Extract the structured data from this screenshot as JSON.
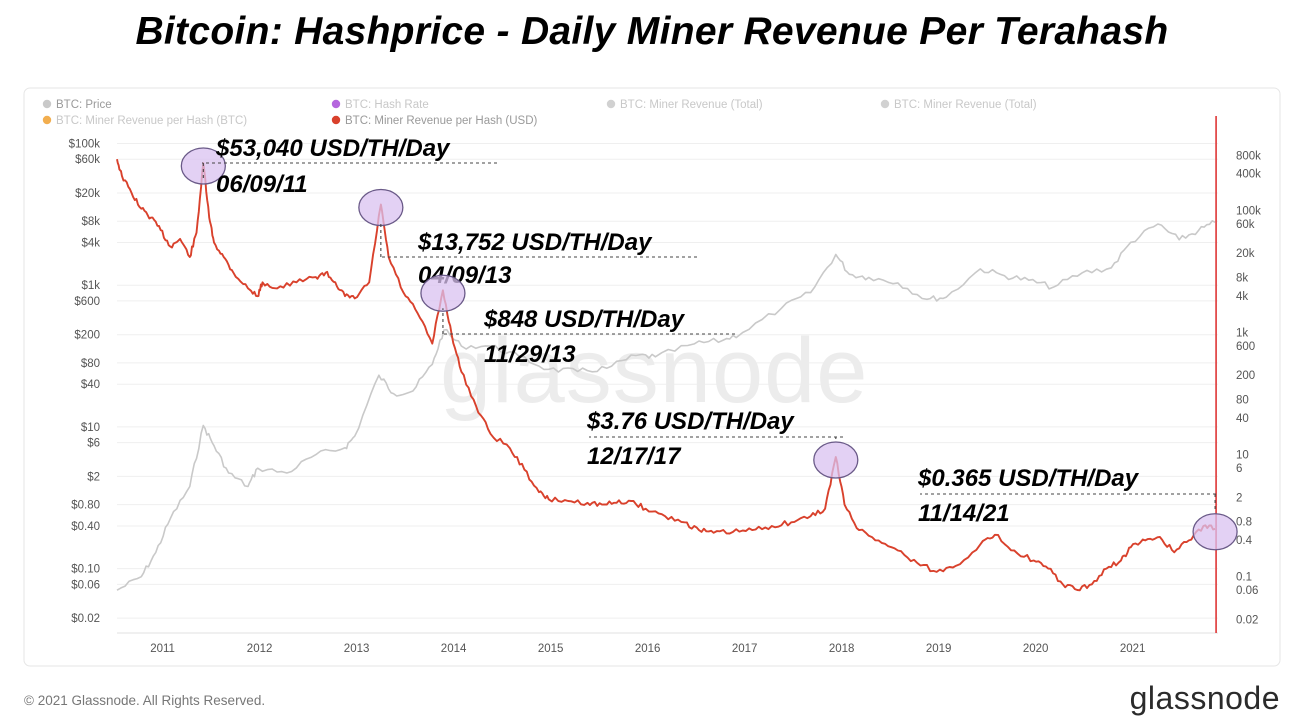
{
  "title": "Bitcoin: Hashprice - Daily Miner Revenue Per Terahash",
  "watermark": "glassnode",
  "footer": {
    "copyright": "© 2021 Glassnode. All Rights Reserved.",
    "brand": "glassnode"
  },
  "colors": {
    "price": "#c9c9c9",
    "revenue_usd": "#d9412c",
    "hash_rate": "#a84bd8",
    "revenue_btc": "#f0a030",
    "highlight_fill": "#d9c2f0",
    "highlight_stroke": "#6a5a88",
    "marker_line": "#e24c4c"
  },
  "chart_data": {
    "type": "line",
    "title": "Bitcoin: Hashprice - Daily Miner Revenue Per Terahash",
    "legend": [
      {
        "label": "BTC: Price",
        "color": "#c9c9c9",
        "dim": false
      },
      {
        "label": "BTC: Hash Rate",
        "color": "#a84bd8",
        "dim": true
      },
      {
        "label": "BTC: Miner Revenue (Total)",
        "color": "#c9c9c9",
        "dim": true
      },
      {
        "label": "BTC: Miner Revenue (Total)",
        "color": "#c9c9c9",
        "dim": true
      },
      {
        "label": "BTC: Miner Revenue per Hash (BTC)",
        "color": "#f0a030",
        "dim": true
      },
      {
        "label": "BTC: Miner Revenue per Hash (USD)",
        "color": "#d9412c",
        "dim": false
      }
    ],
    "legend_position": "top-left",
    "x_ticks": [
      "2011",
      "2012",
      "2013",
      "2014",
      "2015",
      "2016",
      "2017",
      "2018",
      "2019",
      "2020",
      "2021"
    ],
    "xlim": [
      2010.55,
      2021.9
    ],
    "left_axis": {
      "scale": "log",
      "ylim": [
        0.015,
        150000
      ],
      "tick_labels": [
        "$100k",
        "$60k",
        "$20k",
        "$8k",
        "$4k",
        "$1k",
        "$600",
        "$200",
        "$80",
        "$40",
        "$10",
        "$6",
        "$2",
        "$0.80",
        "$0.40",
        "$0.10",
        "$0.06",
        "$0.02"
      ],
      "tick_values": [
        100000,
        60000,
        20000,
        8000,
        4000,
        1000,
        600,
        200,
        80,
        40,
        10,
        6,
        2,
        0.8,
        0.4,
        0.1,
        0.06,
        0.02
      ]
    },
    "right_axis": {
      "scale": "log",
      "ylim": [
        0.015,
        2000000
      ],
      "tick_labels": [
        "800k",
        "400k",
        "100k",
        "60k",
        "20k",
        "8k",
        "4k",
        "1k",
        "600",
        "200",
        "80",
        "40",
        "10",
        "6",
        "2",
        "0.8",
        "0.4",
        "0.1",
        "0.06",
        "0.02"
      ],
      "tick_values": [
        800000,
        400000,
        100000,
        60000,
        20000,
        8000,
        4000,
        1000,
        600,
        200,
        80,
        40,
        10,
        6,
        2,
        0.8,
        0.4,
        0.1,
        0.06,
        0.02
      ]
    },
    "grid": true,
    "series": [
      {
        "name": "BTC: Miner Revenue per Hash (USD)",
        "color": "#d9412c",
        "points": [
          [
            2010.55,
            60000
          ],
          [
            2010.6,
            35000
          ],
          [
            2010.7,
            20000
          ],
          [
            2010.8,
            12000
          ],
          [
            2010.9,
            9000
          ],
          [
            2011.0,
            6000
          ],
          [
            2011.1,
            3500
          ],
          [
            2011.2,
            4500
          ],
          [
            2011.3,
            2500
          ],
          [
            2011.37,
            5500
          ],
          [
            2011.44,
            53040
          ],
          [
            2011.5,
            9000
          ],
          [
            2011.55,
            4000
          ],
          [
            2011.65,
            2500
          ],
          [
            2011.75,
            1500
          ],
          [
            2011.9,
            900
          ],
          [
            2012.0,
            700
          ],
          [
            2012.05,
            1100
          ],
          [
            2012.2,
            900
          ],
          [
            2012.4,
            1100
          ],
          [
            2012.6,
            1300
          ],
          [
            2012.7,
            1500
          ],
          [
            2012.8,
            1100
          ],
          [
            2012.9,
            700
          ],
          [
            2013.0,
            650
          ],
          [
            2013.15,
            1100
          ],
          [
            2013.27,
            13752
          ],
          [
            2013.35,
            2500
          ],
          [
            2013.5,
            800
          ],
          [
            2013.65,
            400
          ],
          [
            2013.8,
            150
          ],
          [
            2013.91,
            848
          ],
          [
            2014.0,
            200
          ],
          [
            2014.1,
            60
          ],
          [
            2014.25,
            20
          ],
          [
            2014.4,
            8
          ],
          [
            2014.6,
            5
          ],
          [
            2014.75,
            2.5
          ],
          [
            2014.9,
            1.2
          ],
          [
            2015.0,
            0.95
          ],
          [
            2015.2,
            0.9
          ],
          [
            2015.4,
            0.85
          ],
          [
            2015.55,
            0.8
          ],
          [
            2015.7,
            0.85
          ],
          [
            2015.85,
            0.9
          ],
          [
            2016.0,
            0.7
          ],
          [
            2016.2,
            0.55
          ],
          [
            2016.4,
            0.45
          ],
          [
            2016.55,
            0.35
          ],
          [
            2016.7,
            0.32
          ],
          [
            2016.9,
            0.33
          ],
          [
            2017.1,
            0.35
          ],
          [
            2017.3,
            0.4
          ],
          [
            2017.5,
            0.45
          ],
          [
            2017.7,
            0.55
          ],
          [
            2017.85,
            0.7
          ],
          [
            2017.96,
            3.76
          ],
          [
            2018.05,
            0.8
          ],
          [
            2018.2,
            0.35
          ],
          [
            2018.4,
            0.25
          ],
          [
            2018.6,
            0.18
          ],
          [
            2018.8,
            0.12
          ],
          [
            2019.0,
            0.09
          ],
          [
            2019.2,
            0.11
          ],
          [
            2019.45,
            0.22
          ],
          [
            2019.6,
            0.3
          ],
          [
            2019.8,
            0.18
          ],
          [
            2020.0,
            0.13
          ],
          [
            2020.15,
            0.1
          ],
          [
            2020.3,
            0.06
          ],
          [
            2020.45,
            0.05
          ],
          [
            2020.6,
            0.06
          ],
          [
            2020.75,
            0.1
          ],
          [
            2020.9,
            0.13
          ],
          [
            2021.0,
            0.2
          ],
          [
            2021.15,
            0.25
          ],
          [
            2021.3,
            0.28
          ],
          [
            2021.45,
            0.17
          ],
          [
            2021.6,
            0.25
          ],
          [
            2021.75,
            0.4
          ],
          [
            2021.87,
            0.365
          ]
        ]
      },
      {
        "name": "BTC: Price",
        "color": "#c9c9c9",
        "axis": "right",
        "points": [
          [
            2010.55,
            0.06
          ],
          [
            2010.8,
            0.1
          ],
          [
            2010.95,
            0.25
          ],
          [
            2011.1,
            0.9
          ],
          [
            2011.3,
            3
          ],
          [
            2011.44,
            30
          ],
          [
            2011.55,
            14
          ],
          [
            2011.7,
            5
          ],
          [
            2011.9,
            3
          ],
          [
            2012.0,
            6
          ],
          [
            2012.3,
            5
          ],
          [
            2012.6,
            10
          ],
          [
            2012.9,
            13
          ],
          [
            2013.0,
            20
          ],
          [
            2013.25,
            200
          ],
          [
            2013.4,
            100
          ],
          [
            2013.6,
            110
          ],
          [
            2013.8,
            300
          ],
          [
            2013.92,
            1100
          ],
          [
            2014.1,
            600
          ],
          [
            2014.4,
            600
          ],
          [
            2014.7,
            400
          ],
          [
            2015.0,
            250
          ],
          [
            2015.3,
            230
          ],
          [
            2015.6,
            260
          ],
          [
            2015.9,
            420
          ],
          [
            2016.1,
            400
          ],
          [
            2016.5,
            650
          ],
          [
            2016.8,
            750
          ],
          [
            2017.0,
            1000
          ],
          [
            2017.4,
            2500
          ],
          [
            2017.7,
            4500
          ],
          [
            2017.96,
            19000
          ],
          [
            2018.1,
            9000
          ],
          [
            2018.3,
            8000
          ],
          [
            2018.6,
            6500
          ],
          [
            2018.9,
            3500
          ],
          [
            2019.1,
            3800
          ],
          [
            2019.45,
            11000
          ],
          [
            2019.7,
            8500
          ],
          [
            2019.95,
            7200
          ],
          [
            2020.2,
            5500
          ],
          [
            2020.5,
            9500
          ],
          [
            2020.8,
            11500
          ],
          [
            2021.0,
            30000
          ],
          [
            2021.28,
            60000
          ],
          [
            2021.5,
            33000
          ],
          [
            2021.7,
            47000
          ],
          [
            2021.87,
            64000
          ]
        ]
      }
    ],
    "annotations": [
      {
        "value_label": "$53,040 USD/TH/Day",
        "date_label": "06/09/11",
        "x": 2011.44,
        "y": 53040
      },
      {
        "value_label": "$13,752 USD/TH/Day",
        "date_label": "04/09/13",
        "x": 2013.27,
        "y": 13752
      },
      {
        "value_label": "$848 USD/TH/Day",
        "date_label": "11/29/13",
        "x": 2013.91,
        "y": 848
      },
      {
        "value_label": "$3.76 USD/TH/Day",
        "date_label": "12/17/17",
        "x": 2017.96,
        "y": 3.76
      },
      {
        "value_label": "$0.365 USD/TH/Day",
        "date_label": "11/14/21",
        "x": 2021.87,
        "y": 0.365
      }
    ]
  }
}
